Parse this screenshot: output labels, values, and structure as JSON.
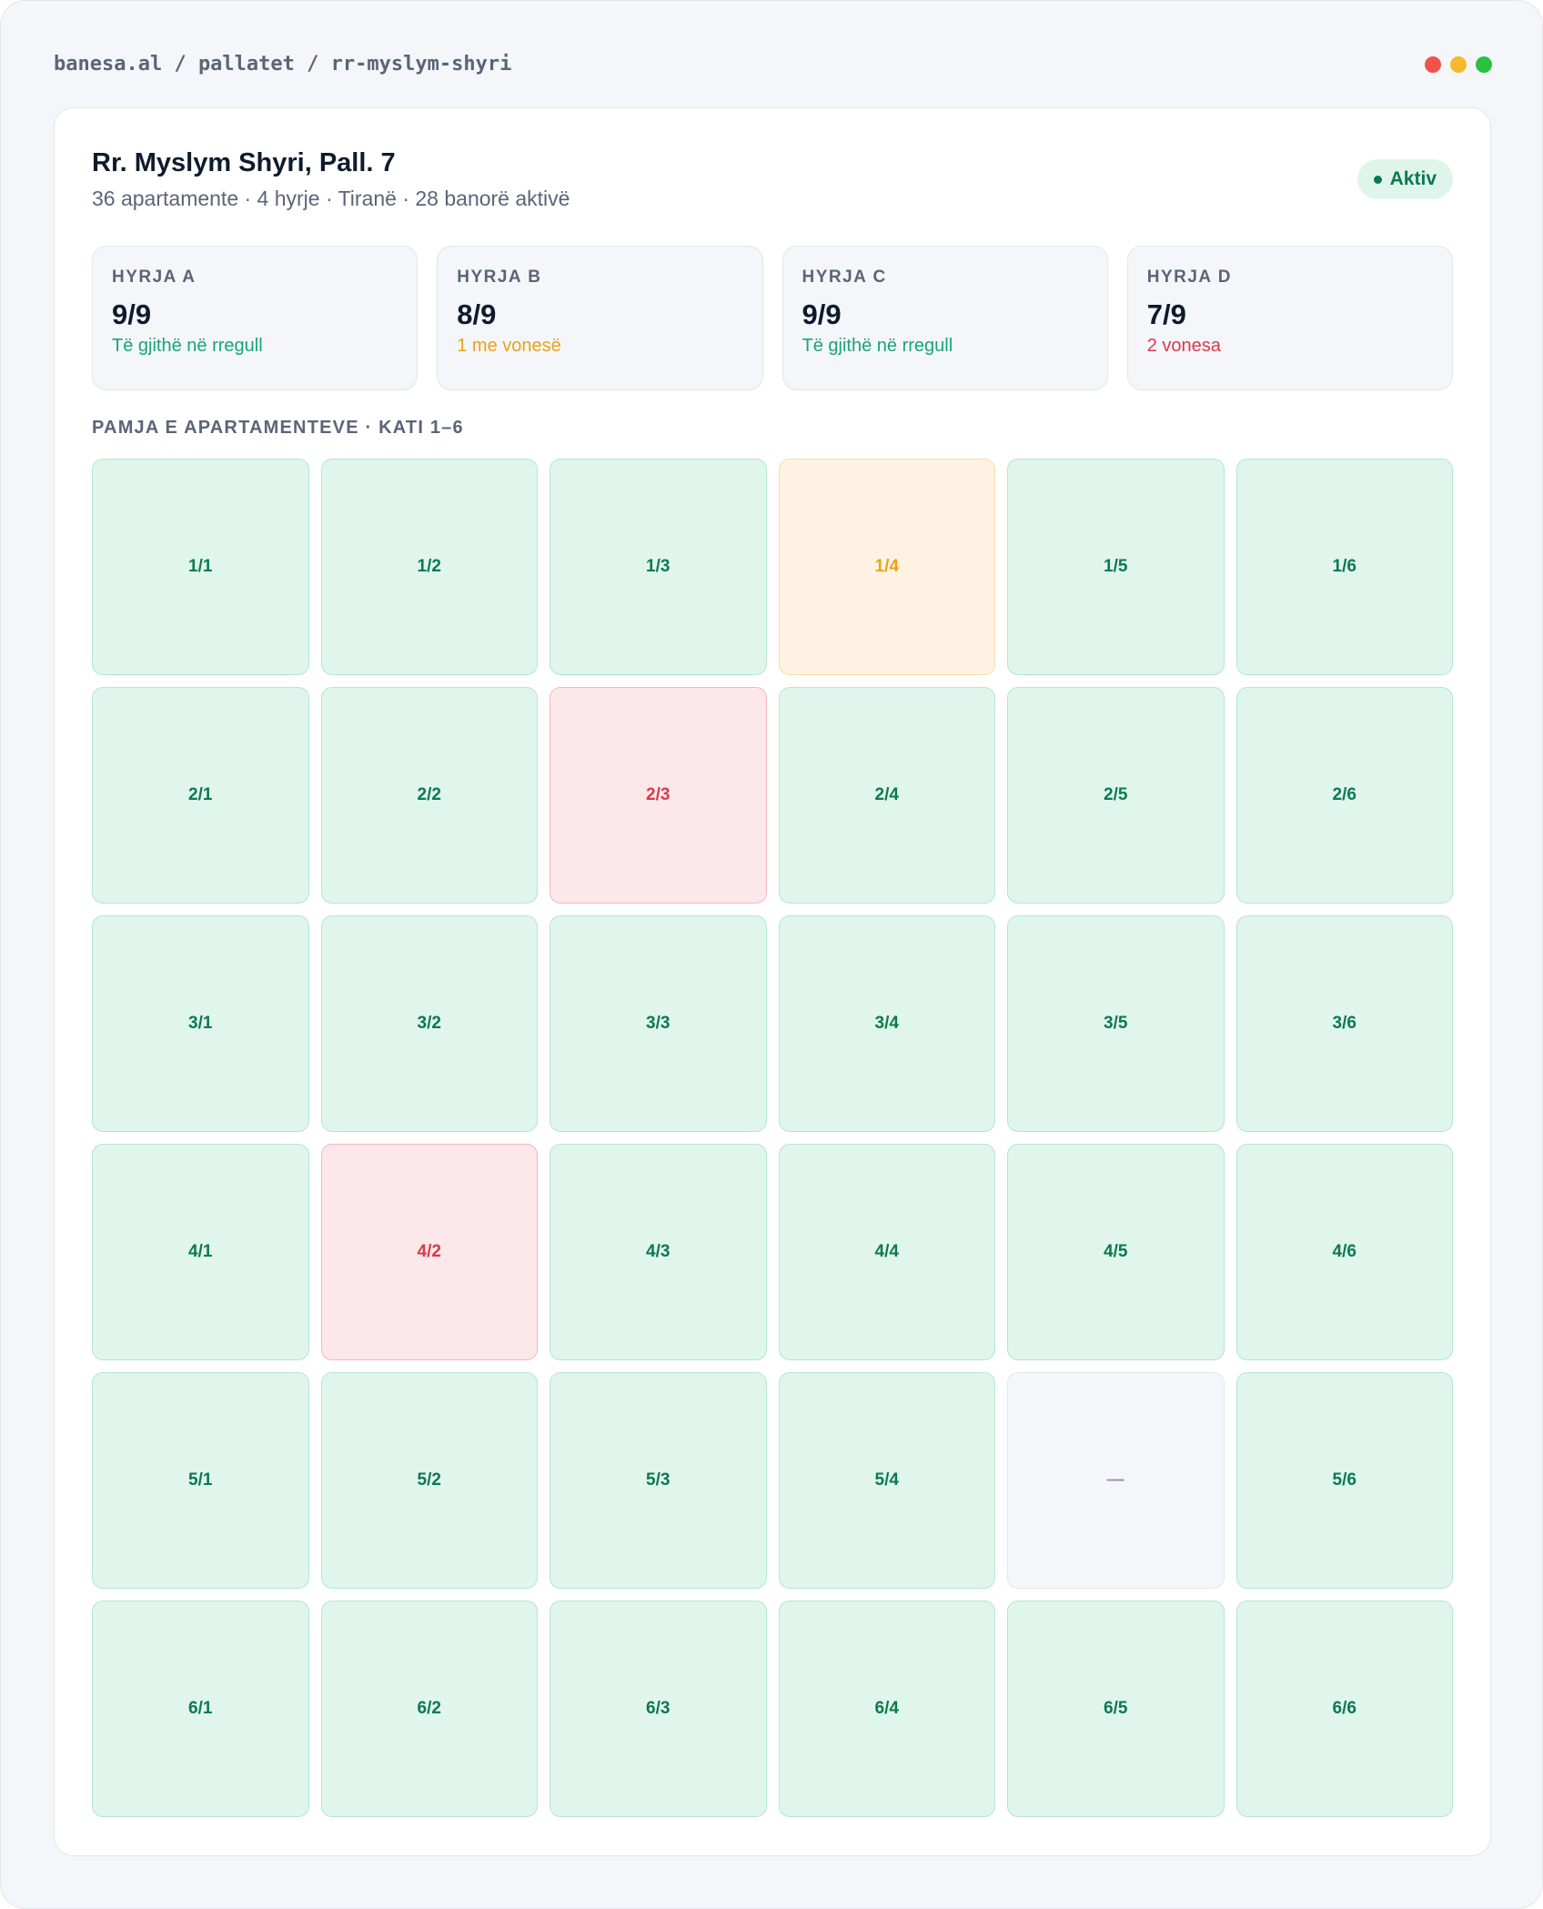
{
  "breadcrumb": "banesa.al / pallatet / rr-myslym-shyri",
  "header": {
    "title": "Rr. Myslym Shyri, Pall. 7",
    "subtitle": "36 apartamente · 4 hyrje · Tiranë · 28 banorë aktivë",
    "badge": "Aktiv"
  },
  "entrances": [
    {
      "label": "HYRJA A",
      "value": "9/9",
      "note": "Të gjithë në rregull",
      "status": "ok"
    },
    {
      "label": "HYRJA B",
      "value": "8/9",
      "note": "1 me vonesë",
      "status": "warn"
    },
    {
      "label": "HYRJA C",
      "value": "9/9",
      "note": "Të gjithë në rregull",
      "status": "ok"
    },
    {
      "label": "HYRJA D",
      "value": "7/9",
      "note": "2 vonesa",
      "status": "late"
    }
  ],
  "section_label": "PAMJA E APARTAMENTEVE · KATI 1–6",
  "grid": {
    "rows": [
      [
        {
          "label": "1/1",
          "status": "ok"
        },
        {
          "label": "1/2",
          "status": "ok"
        },
        {
          "label": "1/3",
          "status": "ok"
        },
        {
          "label": "1/4",
          "status": "warn"
        },
        {
          "label": "1/5",
          "status": "ok"
        },
        {
          "label": "1/6",
          "status": "ok"
        }
      ],
      [
        {
          "label": "2/1",
          "status": "ok"
        },
        {
          "label": "2/2",
          "status": "ok"
        },
        {
          "label": "2/3",
          "status": "late"
        },
        {
          "label": "2/4",
          "status": "ok"
        },
        {
          "label": "2/5",
          "status": "ok"
        },
        {
          "label": "2/6",
          "status": "ok"
        }
      ],
      [
        {
          "label": "3/1",
          "status": "ok"
        },
        {
          "label": "3/2",
          "status": "ok"
        },
        {
          "label": "3/3",
          "status": "ok"
        },
        {
          "label": "3/4",
          "status": "ok"
        },
        {
          "label": "3/5",
          "status": "ok"
        },
        {
          "label": "3/6",
          "status": "ok"
        }
      ],
      [
        {
          "label": "4/1",
          "status": "ok"
        },
        {
          "label": "4/2",
          "status": "late"
        },
        {
          "label": "4/3",
          "status": "ok"
        },
        {
          "label": "4/4",
          "status": "ok"
        },
        {
          "label": "4/5",
          "status": "ok"
        },
        {
          "label": "4/6",
          "status": "ok"
        }
      ],
      [
        {
          "label": "5/1",
          "status": "ok"
        },
        {
          "label": "5/2",
          "status": "ok"
        },
        {
          "label": "5/3",
          "status": "ok"
        },
        {
          "label": "5/4",
          "status": "ok"
        },
        {
          "label": "—",
          "status": "empty"
        },
        {
          "label": "5/6",
          "status": "ok"
        }
      ],
      [
        {
          "label": "6/1",
          "status": "ok"
        },
        {
          "label": "6/2",
          "status": "ok"
        },
        {
          "label": "6/3",
          "status": "ok"
        },
        {
          "label": "6/4",
          "status": "ok"
        },
        {
          "label": "6/5",
          "status": "ok"
        },
        {
          "label": "6/6",
          "status": "ok"
        }
      ]
    ]
  }
}
